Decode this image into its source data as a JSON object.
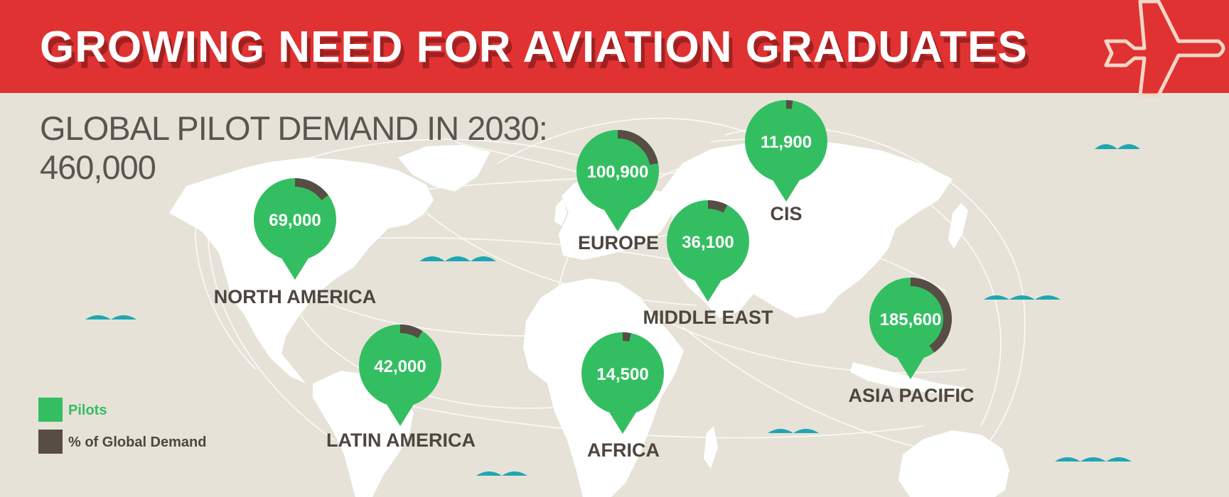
{
  "colors": {
    "banner_red": "#e03232",
    "banner_shadow": "#9f2121",
    "background": "#e6e2d7",
    "land": "#ffffff",
    "pilots_green": "#34be62",
    "share_dark": "#574d44",
    "text_dark": "#4e4640",
    "subtitle_grey": "#5b5551",
    "wave_teal": "#1fa6b2"
  },
  "header": {
    "title": "GROWING NEED FOR AVIATION GRADUATES",
    "plane_icon": "airplane-icon"
  },
  "subtitle": {
    "line1": "GLOBAL PILOT DEMAND IN 2030:",
    "line2": "460,000"
  },
  "regions": [
    {
      "name": "NORTH AMERICA",
      "pilots": "69,000",
      "pilots_value": 69000,
      "share_pct": 15.0
    },
    {
      "name": "EUROPE",
      "pilots": "100,900",
      "pilots_value": 100900,
      "share_pct": 21.9
    },
    {
      "name": "CIS",
      "pilots": "11,900",
      "pilots_value": 11900,
      "share_pct": 2.6
    },
    {
      "name": "MIDDLE EAST",
      "pilots": "36,100",
      "pilots_value": 36100,
      "share_pct": 7.8
    },
    {
      "name": "LATIN AMERICA",
      "pilots": "42,000",
      "pilots_value": 42000,
      "share_pct": 9.1
    },
    {
      "name": "AFRICA",
      "pilots": "14,500",
      "pilots_value": 14500,
      "share_pct": 3.2
    },
    {
      "name": "ASIA PACIFIC",
      "pilots": "185,600",
      "pilots_value": 185600,
      "share_pct": 40.3
    }
  ],
  "legend": {
    "pilots_label": "Pilots",
    "share_label": "% of Global Demand"
  }
}
